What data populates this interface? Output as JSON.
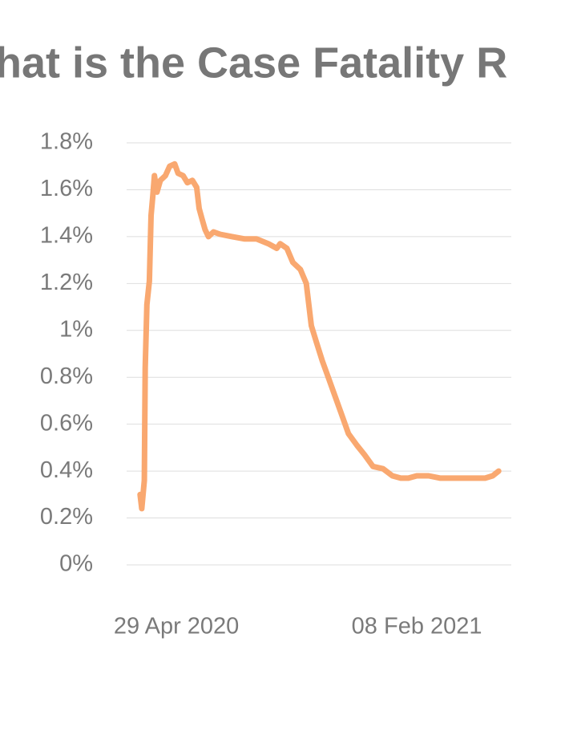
{
  "chart_data": {
    "type": "line",
    "title": "hat is the Case Fatality R",
    "x": [
      "2020-03-17",
      "2020-03-19",
      "2020-03-22",
      "2020-03-23",
      "2020-03-25",
      "2020-03-28",
      "2020-03-30",
      "2020-04-01",
      "2020-04-03",
      "2020-04-06",
      "2020-04-10",
      "2020-04-16",
      "2020-04-21",
      "2020-04-27",
      "2020-05-01",
      "2020-05-07",
      "2020-05-12",
      "2020-05-18",
      "2020-05-23",
      "2020-05-26",
      "2020-05-29",
      "2020-06-02",
      "2020-06-06",
      "2020-06-12",
      "2020-06-20",
      "2020-07-04",
      "2020-07-19",
      "2020-08-02",
      "2020-08-16",
      "2020-08-26",
      "2020-08-30",
      "2020-09-07",
      "2020-09-14",
      "2020-09-23",
      "2020-09-30",
      "2020-10-06",
      "2020-10-12",
      "2020-10-19",
      "2020-10-26",
      "2020-11-03",
      "2020-11-10",
      "2020-11-19",
      "2020-11-29",
      "2020-12-08",
      "2020-12-18",
      "2020-12-30",
      "2021-01-10",
      "2021-01-20",
      "2021-01-29",
      "2021-02-08",
      "2021-02-22",
      "2021-03-08",
      "2021-03-23",
      "2021-04-06",
      "2021-04-20",
      "2021-04-30",
      "2021-05-09",
      "2021-05-16"
    ],
    "series": [
      {
        "name": "Case Fatality Rate",
        "color": "#f9a870",
        "values": [
          0.3,
          0.24,
          0.36,
          0.84,
          1.11,
          1.21,
          1.49,
          1.57,
          1.66,
          1.59,
          1.64,
          1.66,
          1.7,
          1.71,
          1.67,
          1.66,
          1.63,
          1.64,
          1.61,
          1.52,
          1.48,
          1.43,
          1.4,
          1.42,
          1.41,
          1.4,
          1.39,
          1.39,
          1.37,
          1.35,
          1.37,
          1.35,
          1.29,
          1.26,
          1.2,
          1.02,
          0.95,
          0.87,
          0.8,
          0.72,
          0.65,
          0.56,
          0.51,
          0.47,
          0.42,
          0.41,
          0.38,
          0.37,
          0.37,
          0.38,
          0.38,
          0.37,
          0.37,
          0.37,
          0.37,
          0.37,
          0.38,
          0.4
        ]
      }
    ],
    "xlim": [
      "2020-03-01",
      "2021-05-31"
    ],
    "xticks": [
      {
        "value": "2020-04-29",
        "label": "29 Apr 2020"
      },
      {
        "value": "2021-02-08",
        "label": "08 Feb 2021"
      }
    ],
    "ylim": [
      0,
      1.8
    ],
    "yticks": [
      {
        "value": 0,
        "label": "0%"
      },
      {
        "value": 0.2,
        "label": "0.2%"
      },
      {
        "value": 0.4,
        "label": "0.4%"
      },
      {
        "value": 0.6,
        "label": "0.6%"
      },
      {
        "value": 0.8,
        "label": "0.8%"
      },
      {
        "value": 1,
        "label": "1%"
      },
      {
        "value": 1.2,
        "label": "1.2%"
      },
      {
        "value": 1.4,
        "label": "1.4%"
      },
      {
        "value": 1.6,
        "label": "1.6%"
      },
      {
        "value": 1.8,
        "label": "1.8%"
      }
    ],
    "grid": true
  }
}
